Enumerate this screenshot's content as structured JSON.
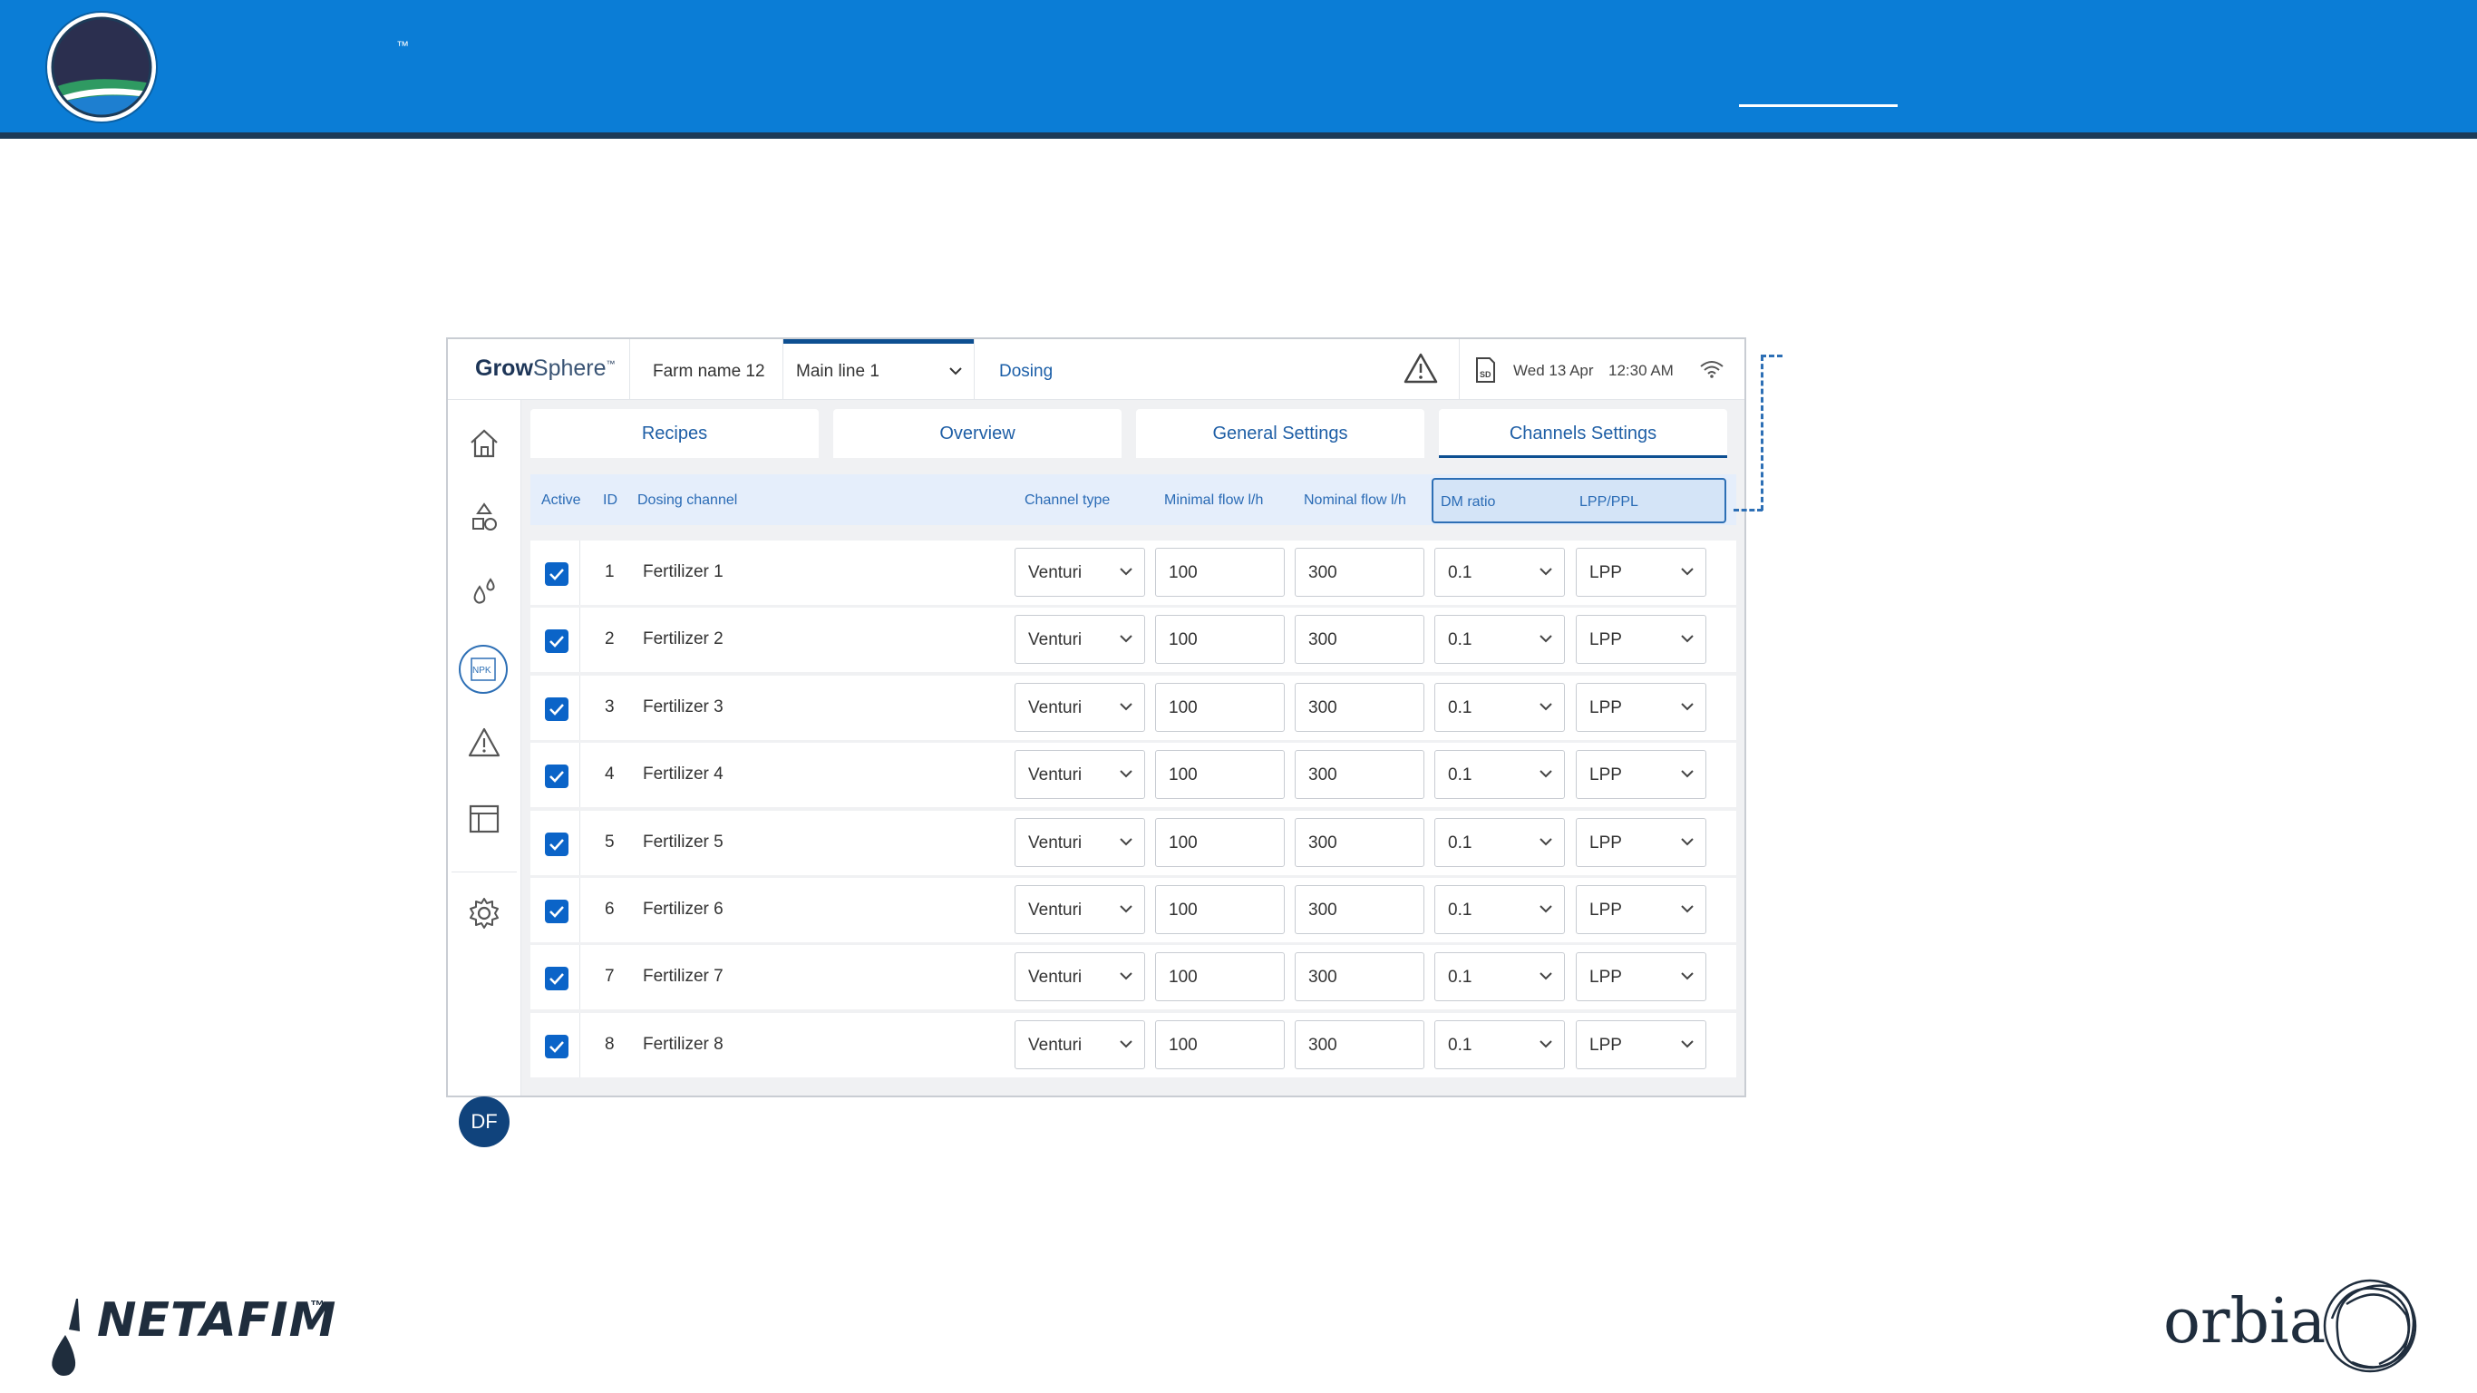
{
  "slide": {
    "tm_mark": "™"
  },
  "app": {
    "brand_bold": "Grow",
    "brand_light": "Sphere",
    "brand_tm": "™",
    "farm_name": "Farm name 12",
    "main_line": "Main line 1",
    "section": "Dosing",
    "date": "Wed 13 Apr",
    "time": "12:30 AM",
    "avatar_initials": "DF"
  },
  "tabs": [
    {
      "label": "Recipes"
    },
    {
      "label": "Overview"
    },
    {
      "label": "General Settings"
    },
    {
      "label": "Channels Settings"
    }
  ],
  "active_tab": "Channels Settings",
  "table": {
    "headers": {
      "active": "Active",
      "id": "ID",
      "dosing_channel": "Dosing channel",
      "channel_type": "Channel type",
      "minimal_flow": "Minimal flow l/h",
      "nominal_flow": "Nominal flow l/h",
      "dm_ratio": "DM ratio",
      "lpp_ppl": "LPP/PPL"
    },
    "rows": [
      {
        "active": true,
        "id": "1",
        "name": "Fertilizer 1",
        "type": "Venturi",
        "min_flow": "100",
        "nom_flow": "300",
        "dm_ratio": "0.1",
        "lpp": "LPP"
      },
      {
        "active": true,
        "id": "2",
        "name": "Fertilizer 2",
        "type": "Venturi",
        "min_flow": "100",
        "nom_flow": "300",
        "dm_ratio": "0.1",
        "lpp": "LPP"
      },
      {
        "active": true,
        "id": "3",
        "name": "Fertilizer 3",
        "type": "Venturi",
        "min_flow": "100",
        "nom_flow": "300",
        "dm_ratio": "0.1",
        "lpp": "LPP"
      },
      {
        "active": true,
        "id": "4",
        "name": "Fertilizer 4",
        "type": "Venturi",
        "min_flow": "100",
        "nom_flow": "300",
        "dm_ratio": "0.1",
        "lpp": "LPP"
      },
      {
        "active": true,
        "id": "5",
        "name": "Fertilizer 5",
        "type": "Venturi",
        "min_flow": "100",
        "nom_flow": "300",
        "dm_ratio": "0.1",
        "lpp": "LPP"
      },
      {
        "active": true,
        "id": "6",
        "name": "Fertilizer 6",
        "type": "Venturi",
        "min_flow": "100",
        "nom_flow": "300",
        "dm_ratio": "0.1",
        "lpp": "LPP"
      },
      {
        "active": true,
        "id": "7",
        "name": "Fertilizer 7",
        "type": "Venturi",
        "min_flow": "100",
        "nom_flow": "300",
        "dm_ratio": "0.1",
        "lpp": "LPP"
      },
      {
        "active": true,
        "id": "8",
        "name": "Fertilizer 8",
        "type": "Venturi",
        "min_flow": "100",
        "nom_flow": "300",
        "dm_ratio": "0.1",
        "lpp": "LPP"
      }
    ]
  },
  "footer": {
    "netafim": "NETAFIM",
    "netafim_tm": "™",
    "orbia": "orbia"
  },
  "colors": {
    "banner": "#0b7dd6",
    "accent": "#0d4f91",
    "checkbox": "#0b64c8"
  }
}
